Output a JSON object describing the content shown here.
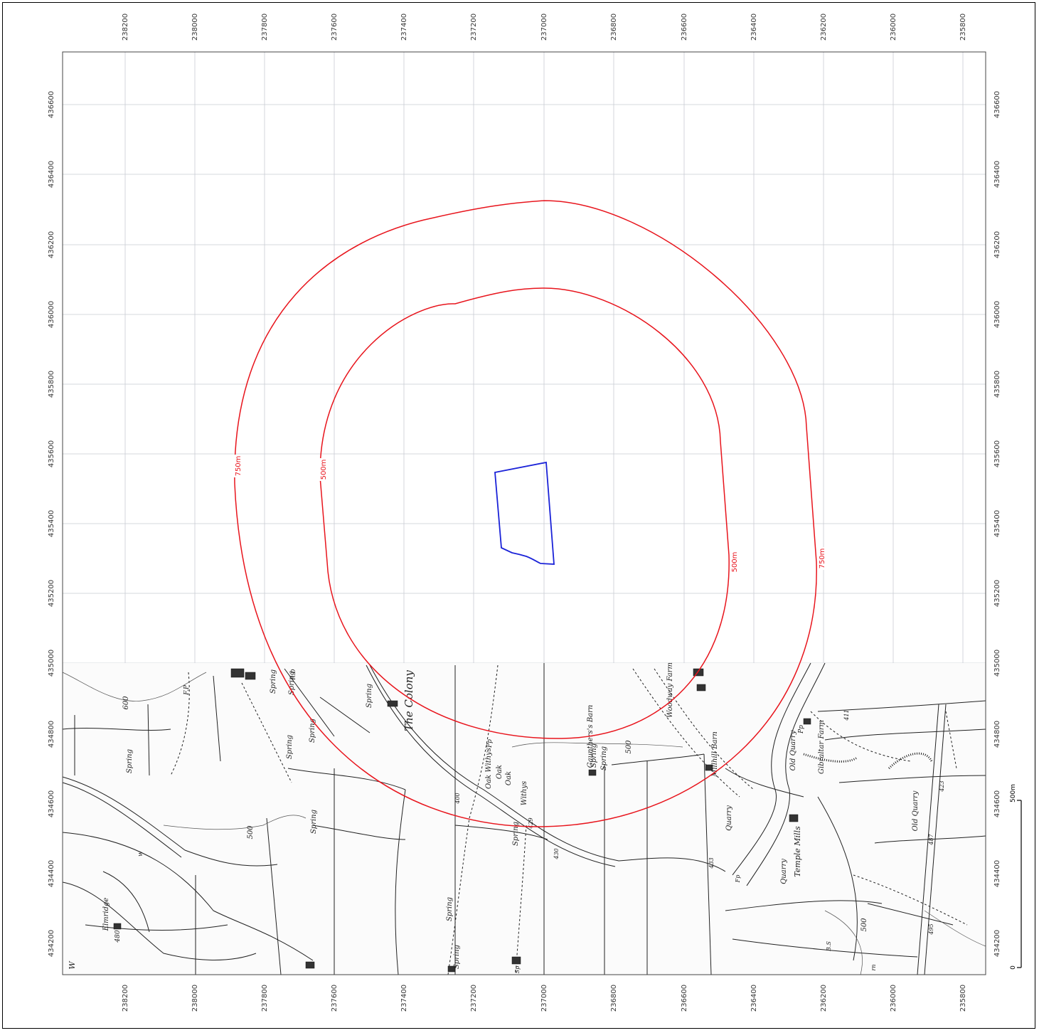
{
  "map": {
    "easting_ticks": [
      "238200",
      "238000",
      "237800",
      "237600",
      "237400",
      "237200",
      "237000",
      "236800",
      "236600",
      "236400",
      "236200",
      "236000",
      "235800"
    ],
    "northing_ticks": [
      "434200",
      "434400",
      "434600",
      "434800",
      "435000",
      "435200",
      "435400",
      "435600",
      "435800",
      "436000",
      "436200",
      "436400",
      "436600"
    ],
    "buffers": [
      {
        "label": "500m",
        "color": "#e8141c"
      },
      {
        "label": "750m",
        "color": "#e8141c"
      }
    ],
    "site_boundary_color": "#1a22d8",
    "scale_bar": {
      "start": "0",
      "end": "500m"
    },
    "place_labels": [
      "The Colony",
      "Oak Withys",
      "Oak",
      "Oak",
      "Withys",
      "Spring",
      "Gaunthers's Barn",
      "Woodway Farm",
      "Millhill Barn",
      "Old Quarry",
      "Gibraltar Farm",
      "Old Quarry",
      "Quarry",
      "Temple Mills",
      "Quarry",
      "Elmridge",
      "Spring",
      "Spring",
      "Spring",
      "Spring",
      "Spring",
      "Spring",
      "Spring",
      "Spring",
      "Spring",
      "Spring",
      "Spring",
      "600",
      "500",
      "500",
      "500",
      "400",
      "430",
      "429",
      "433",
      "411",
      "423",
      "487",
      "495",
      "480",
      "Pp",
      "Pp",
      "Fp",
      "B.S",
      "F.P",
      "W",
      "R D",
      "Sp",
      "rn",
      "w"
    ]
  }
}
